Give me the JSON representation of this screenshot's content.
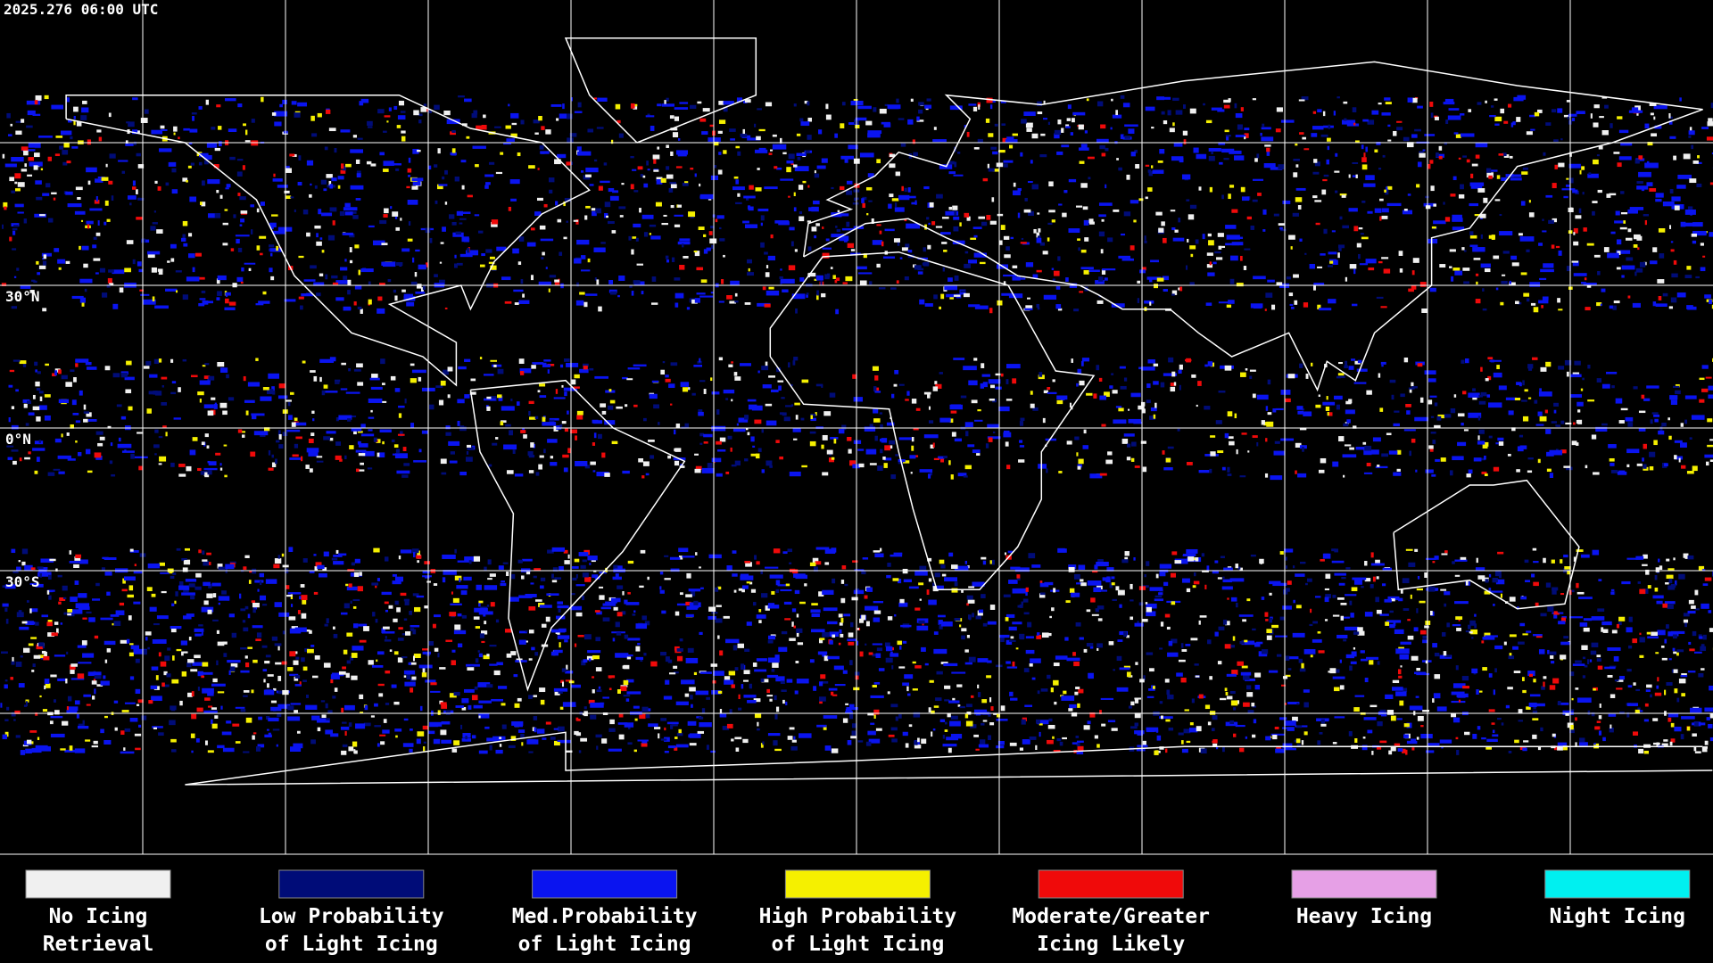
{
  "header": {
    "timestamp": "2025.276 06:00 UTC"
  },
  "map": {
    "latitude_labels": [
      "30°N",
      "0°N",
      "30°S"
    ]
  },
  "legend": {
    "items": [
      {
        "label": [
          "No Icing",
          "Retrieval"
        ],
        "color": "#f0f0f0"
      },
      {
        "label": [
          "Low Probability",
          "of Light Icing"
        ],
        "color": "#000c78"
      },
      {
        "label": [
          "Med.Probability",
          "of Light Icing"
        ],
        "color": "#0a14f0"
      },
      {
        "label": [
          "High Probability",
          "of Light Icing"
        ],
        "color": "#f5f000"
      },
      {
        "label": [
          "Moderate/Greater",
          "Icing Likely"
        ],
        "color": "#f00a0a"
      },
      {
        "label": [
          "Heavy Icing"
        ],
        "color": "#e6a0e6"
      },
      {
        "label": [
          "Night Icing"
        ],
        "color": "#00f0f0"
      }
    ]
  }
}
